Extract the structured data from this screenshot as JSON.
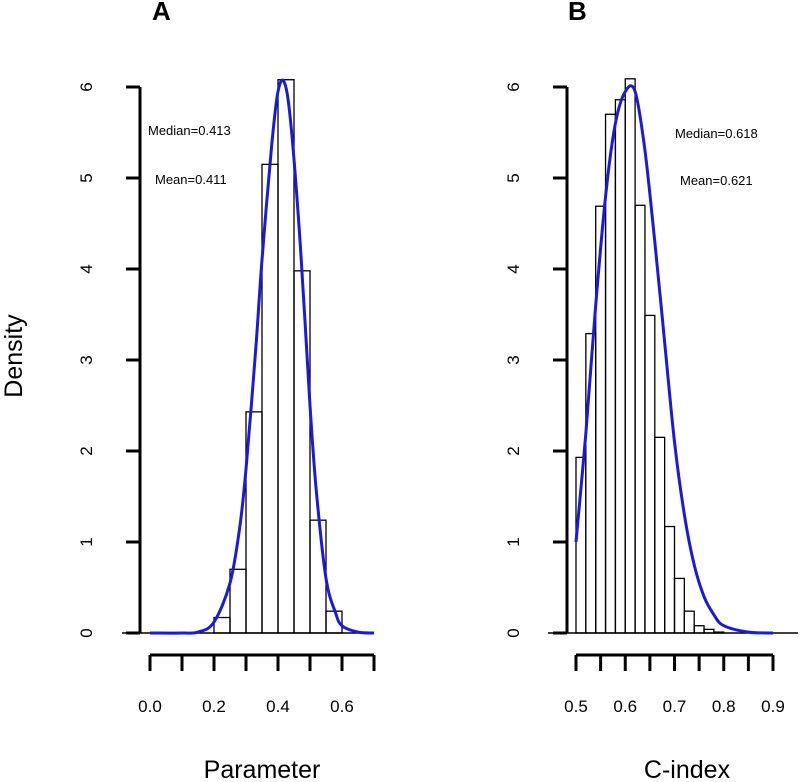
{
  "figure": {
    "shared_ylabel": "Density"
  },
  "colors": {
    "curve": "#1a1adc",
    "bars": "#000000",
    "background": "#ffffff"
  },
  "chart_data": [
    {
      "type": "histogram",
      "panel": "A",
      "xlabel": "Parameter",
      "ylabel": "Density",
      "xlim": [
        0.0,
        0.7
      ],
      "ylim": [
        0,
        6
      ],
      "x_ticks": [
        "0.0",
        "0.2",
        "0.4",
        "0.6"
      ],
      "y_ticks": [
        "0",
        "1",
        "2",
        "3",
        "4",
        "5",
        "6"
      ],
      "bin_width": 0.05,
      "bin_starts": [
        0.2,
        0.25,
        0.3,
        0.35,
        0.4,
        0.45,
        0.5,
        0.55,
        0.6
      ],
      "values": [
        0.17,
        0.7,
        2.43,
        5.15,
        6.08,
        3.98,
        1.24,
        0.24,
        0.0
      ],
      "density_curve": {
        "x": [
          0.0,
          0.1,
          0.15,
          0.2,
          0.25,
          0.28,
          0.3,
          0.33,
          0.35,
          0.38,
          0.4,
          0.42,
          0.44,
          0.47,
          0.5,
          0.52,
          0.55,
          0.58,
          0.6,
          0.65,
          0.7
        ],
        "y": [
          0.0,
          0.0,
          0.01,
          0.12,
          0.55,
          1.15,
          1.8,
          3.1,
          4.1,
          5.35,
          5.95,
          6.05,
          5.6,
          4.25,
          2.5,
          1.55,
          0.6,
          0.22,
          0.08,
          0.01,
          0.0
        ]
      },
      "annotations": [
        "Median=0.413",
        "Mean=0.411"
      ]
    },
    {
      "type": "histogram",
      "panel": "B",
      "xlabel": "C-index",
      "ylabel": "Density",
      "xlim": [
        0.5,
        0.9
      ],
      "ylim": [
        0,
        6
      ],
      "x_ticks": [
        "0.5",
        "0.6",
        "0.7",
        "0.8",
        "0.9"
      ],
      "y_ticks": [
        "0",
        "1",
        "2",
        "3",
        "4",
        "5",
        "6"
      ],
      "bin_width": 0.02,
      "bin_starts": [
        0.5,
        0.52,
        0.54,
        0.56,
        0.58,
        0.6,
        0.62,
        0.64,
        0.66,
        0.68,
        0.7,
        0.72,
        0.74,
        0.76,
        0.78,
        0.8
      ],
      "values": [
        1.93,
        3.29,
        4.69,
        5.7,
        5.86,
        6.09,
        4.7,
        3.49,
        2.15,
        1.17,
        0.6,
        0.24,
        0.08,
        0.04,
        0.01,
        0.0
      ],
      "density_curve": {
        "x": [
          0.5,
          0.52,
          0.54,
          0.56,
          0.58,
          0.6,
          0.62,
          0.64,
          0.66,
          0.68,
          0.7,
          0.72,
          0.74,
          0.76,
          0.78,
          0.8,
          0.85,
          0.9
        ],
        "y": [
          1.0,
          2.2,
          3.6,
          4.8,
          5.6,
          5.95,
          5.95,
          5.3,
          4.3,
          3.2,
          2.1,
          1.3,
          0.75,
          0.4,
          0.2,
          0.08,
          0.01,
          0.0
        ]
      },
      "annotations": [
        "Median=0.618",
        "Mean=0.621"
      ]
    }
  ]
}
